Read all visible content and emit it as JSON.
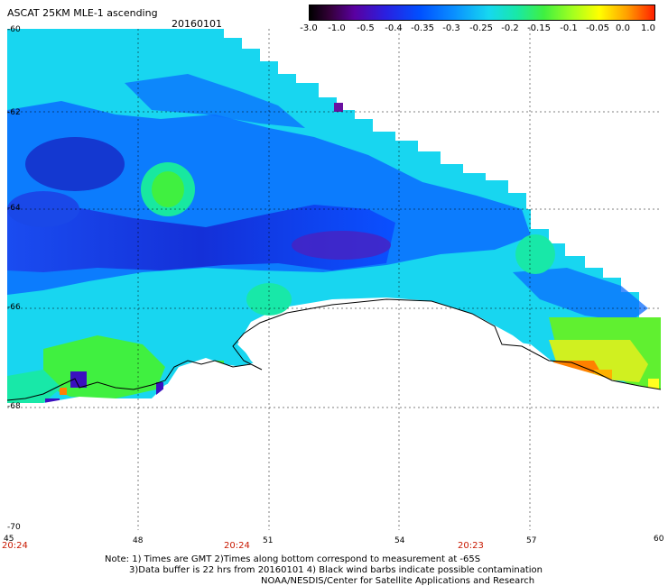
{
  "header": {
    "title": "ASCAT 25KM MLE-1 ascending",
    "date": "20160101"
  },
  "colorbar": {
    "labels": [
      "-3.0",
      "-1.0",
      "-0.5",
      "-0.4",
      "-0.35",
      "-0.3",
      "-0.25",
      "-0.2",
      "-0.15",
      "-0.1",
      "-0.05",
      "0.0",
      "1.0"
    ]
  },
  "axes": {
    "lat_labels": [
      "-60",
      "-62",
      "-64",
      "-66",
      "-68",
      "-70"
    ],
    "lon_labels": [
      "45",
      "48",
      "51",
      "54",
      "57",
      "60"
    ],
    "time_labels": [
      "20:24",
      "20:24",
      "20:23"
    ]
  },
  "footer": {
    "line1": "Note: 1) Times are GMT 2)Times along bottom correspond to measurement at -65S",
    "line2": "3)Data buffer is 22 hrs from 20160101 4) Black wind barbs indicate possible contamination",
    "line3": "NOAA/NESDIS/Center for Satellite Applications and Research"
  },
  "colors": {
    "coast": "#000000",
    "grid": "#000000",
    "time_text": "#c81800"
  }
}
